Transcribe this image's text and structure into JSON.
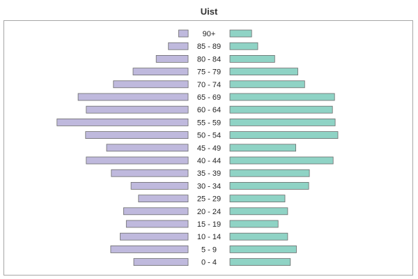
{
  "chart_data": {
    "type": "bar",
    "subtype": "population-pyramid",
    "title": "Uist",
    "categories": [
      "90+",
      "85 - 89",
      "80 - 84",
      "75 - 79",
      "70 - 74",
      "65 - 69",
      "60 - 64",
      "55 - 59",
      "50 - 54",
      "45 - 49",
      "40 - 44",
      "35 - 39",
      "30 - 34",
      "25 - 29",
      "20 - 24",
      "15 - 19",
      "10 - 14",
      "5 - 9",
      "0 - 4"
    ],
    "series": [
      {
        "side": "left",
        "color": "#bfb9dd",
        "values": [
          14,
          29,
          47,
          81,
          110,
          162,
          150,
          193,
          151,
          120,
          150,
          113,
          84,
          73,
          95,
          91,
          100,
          114,
          80
        ]
      },
      {
        "side": "right",
        "color": "#8fd3c5",
        "values": [
          32,
          41,
          66,
          100,
          110,
          154,
          151,
          155,
          159,
          97,
          152,
          117,
          116,
          81,
          85,
          71,
          85,
          98,
          89
        ]
      }
    ],
    "xlim": [
      0,
      200
    ],
    "grid": false,
    "legend": "none"
  }
}
